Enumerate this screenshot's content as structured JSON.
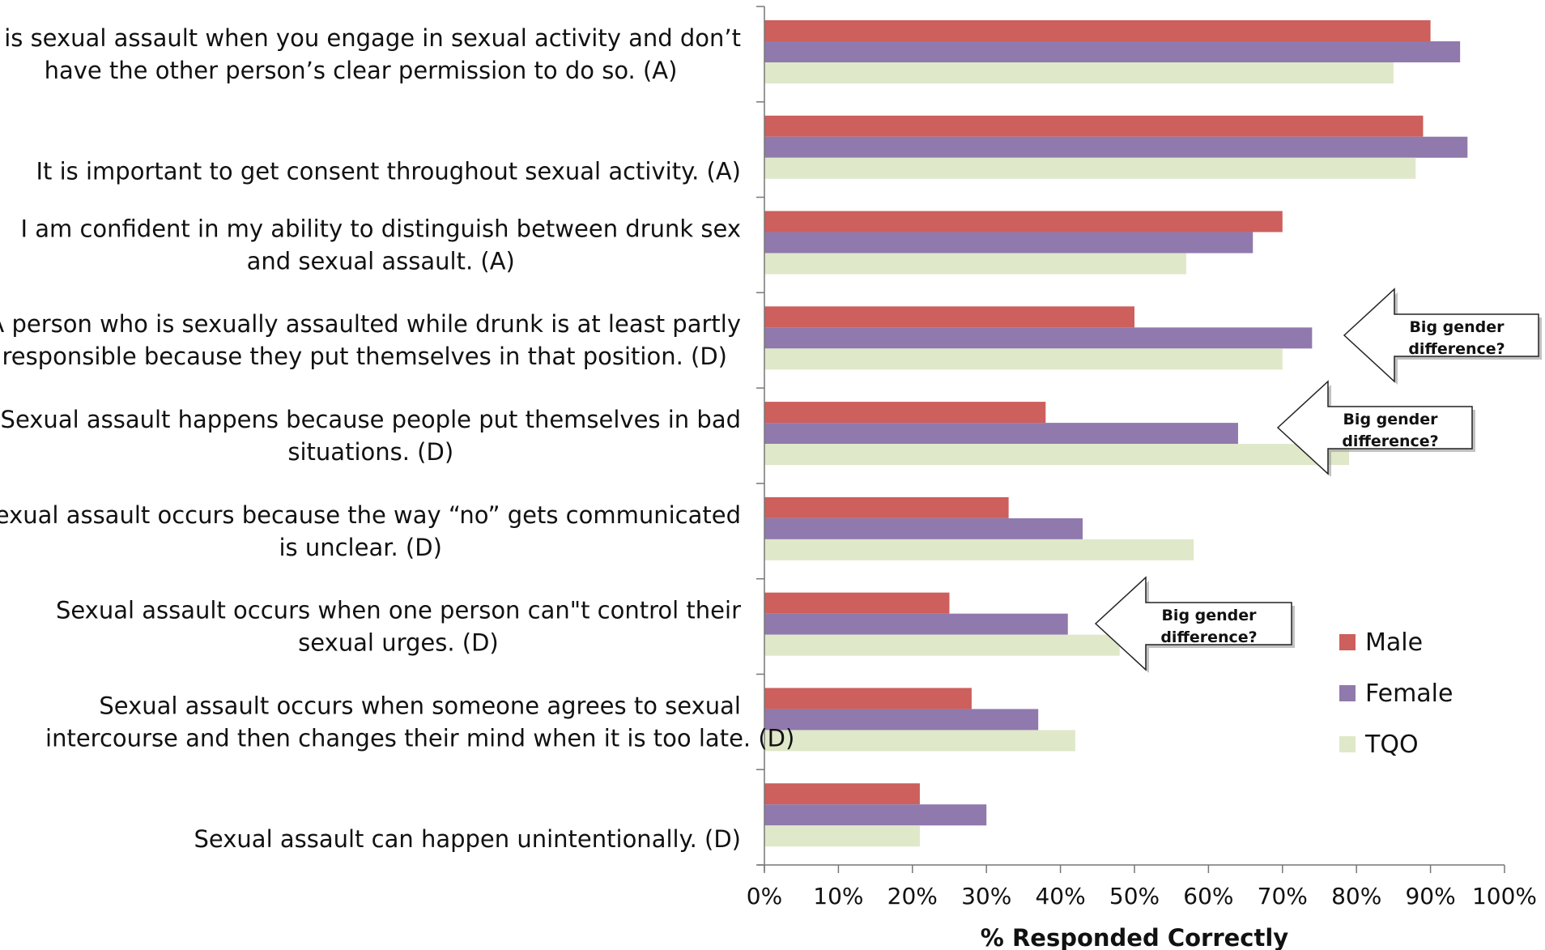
{
  "chart_data": {
    "type": "bar",
    "orientation": "horizontal",
    "categories": [
      [
        "It is sexual assault when you engage in sexual activity and don’t",
        "have the other person’s clear permission to do so. (A)"
      ],
      [
        "It is important to get consent throughout sexual activity. (A)"
      ],
      [
        "I am confident in my ability to distinguish between drunk sex",
        "and sexual assault. (A)"
      ],
      [
        "A person who is sexually assaulted while drunk is at least partly",
        "responsible because they put themselves in that position. (D)"
      ],
      [
        "Sexual assault happens because people put themselves in bad",
        "situations. (D)"
      ],
      [
        "Sexual assault occurs because the way “no” gets communicated",
        "is unclear. (D)"
      ],
      [
        "Sexual assault occurs when one person can\"t control their",
        "sexual urges. (D)"
      ],
      [
        "Sexual assault occurs when someone agrees to sexual",
        "intercourse and then changes their mind when it is too late. (D)"
      ],
      [
        "Sexual assault can happen unintentionally. (D)"
      ]
    ],
    "series": [
      {
        "name": "Male",
        "color": "#cd5f5c",
        "values": [
          90,
          89,
          70,
          50,
          38,
          33,
          25,
          28,
          21
        ]
      },
      {
        "name": "Female",
        "color": "#9079ad",
        "values": [
          94,
          95,
          66,
          74,
          64,
          43,
          41,
          37,
          30
        ]
      },
      {
        "name": "TQO",
        "color": "#dfe8c9",
        "values": [
          85,
          88,
          57,
          70,
          79,
          58,
          48,
          42,
          21
        ]
      }
    ],
    "xlim": [
      0,
      100
    ],
    "xticks": [
      "0%",
      "10%",
      "20%",
      "30%",
      "40%",
      "50%",
      "60%",
      "70%",
      "80%",
      "90%",
      "100%"
    ],
    "xlabel": "% Responded Correctly",
    "ylabel": "",
    "title": "",
    "grid": false,
    "legend_position": "right",
    "annotations": [
      {
        "category_index": 3,
        "lines": [
          "Big gender",
          "difference?"
        ]
      },
      {
        "category_index": 4,
        "lines": [
          "Big gender",
          "difference?"
        ]
      },
      {
        "category_index": 6,
        "lines": [
          "Big  gender",
          "difference?"
        ]
      }
    ]
  }
}
